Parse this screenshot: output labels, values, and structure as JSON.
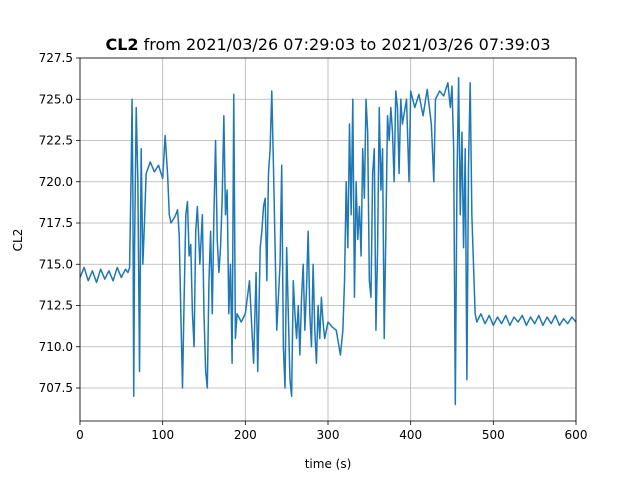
{
  "chart_data": {
    "type": "line",
    "title_bold": "CL2",
    "title_rest": " from 2021/03/26 07:29:03 to 2021/03/26 07:39:03",
    "xlabel": "time (s)",
    "ylabel": "CL2",
    "xlim": [
      0,
      600
    ],
    "ylim": [
      705.5,
      727.5
    ],
    "xticks": [
      0,
      100,
      200,
      300,
      400,
      500,
      600
    ],
    "yticks": [
      707.5,
      710.0,
      712.5,
      715.0,
      717.5,
      720.0,
      722.5,
      725.0,
      727.5
    ],
    "grid": true,
    "line_color": "#1f77b4",
    "series": [
      {
        "points": [
          [
            0,
            714.2
          ],
          [
            5,
            714.8
          ],
          [
            10,
            714.0
          ],
          [
            15,
            714.6
          ],
          [
            20,
            713.9
          ],
          [
            25,
            714.7
          ],
          [
            30,
            714.1
          ],
          [
            35,
            714.6
          ],
          [
            40,
            714.0
          ],
          [
            45,
            714.8
          ],
          [
            50,
            714.2
          ],
          [
            55,
            714.7
          ],
          [
            58,
            714.5
          ],
          [
            60,
            714.8
          ],
          [
            62,
            721.0
          ],
          [
            63,
            725.0
          ],
          [
            64,
            719.0
          ],
          [
            65,
            707.0
          ],
          [
            66,
            716.0
          ],
          [
            68,
            724.5
          ],
          [
            70,
            720.0
          ],
          [
            72,
            708.5
          ],
          [
            74,
            722.0
          ],
          [
            76,
            715.0
          ],
          [
            78,
            717.5
          ],
          [
            80,
            720.5
          ],
          [
            85,
            721.2
          ],
          [
            90,
            720.6
          ],
          [
            95,
            721.0
          ],
          [
            100,
            720.2
          ],
          [
            103,
            722.8
          ],
          [
            106,
            720.4
          ],
          [
            108,
            718.0
          ],
          [
            110,
            717.5
          ],
          [
            115,
            717.9
          ],
          [
            118,
            718.3
          ],
          [
            120,
            716.8
          ],
          [
            122,
            712.0
          ],
          [
            124,
            707.5
          ],
          [
            126,
            713.0
          ],
          [
            128,
            718.0
          ],
          [
            130,
            718.8
          ],
          [
            132,
            715.5
          ],
          [
            134,
            716.2
          ],
          [
            136,
            712.0
          ],
          [
            138,
            710.0
          ],
          [
            140,
            717.0
          ],
          [
            142,
            718.5
          ],
          [
            145,
            715.0
          ],
          [
            148,
            718.0
          ],
          [
            150,
            712.0
          ],
          [
            152,
            708.5
          ],
          [
            154,
            707.5
          ],
          [
            156,
            714.0
          ],
          [
            158,
            717.0
          ],
          [
            160,
            712.0
          ],
          [
            162,
            718.0
          ],
          [
            164,
            722.5
          ],
          [
            166,
            716.5
          ],
          [
            168,
            714.5
          ],
          [
            170,
            716.0
          ],
          [
            172,
            719.0
          ],
          [
            174,
            724.0
          ],
          [
            176,
            718.0
          ],
          [
            178,
            719.5
          ],
          [
            180,
            712.0
          ],
          [
            182,
            715.0
          ],
          [
            184,
            709.0
          ],
          [
            186,
            725.3
          ],
          [
            188,
            710.5
          ],
          [
            190,
            712.0
          ],
          [
            195,
            711.5
          ],
          [
            200,
            712.0
          ],
          [
            205,
            714.0
          ],
          [
            210,
            709.0
          ],
          [
            213,
            714.5
          ],
          [
            215,
            708.5
          ],
          [
            218,
            716.0
          ],
          [
            220,
            717.0
          ],
          [
            222,
            718.5
          ],
          [
            224,
            719.0
          ],
          [
            226,
            714.0
          ],
          [
            228,
            720.5
          ],
          [
            230,
            722.0
          ],
          [
            232,
            725.5
          ],
          [
            234,
            721.0
          ],
          [
            236,
            716.0
          ],
          [
            238,
            711.0
          ],
          [
            240,
            713.0
          ],
          [
            242,
            715.0
          ],
          [
            244,
            721.0
          ],
          [
            246,
            710.0
          ],
          [
            248,
            707.5
          ],
          [
            250,
            716.0
          ],
          [
            252,
            712.0
          ],
          [
            254,
            708.0
          ],
          [
            256,
            707.0
          ],
          [
            258,
            714.0
          ],
          [
            260,
            712.0
          ],
          [
            262,
            710.5
          ],
          [
            264,
            712.5
          ],
          [
            266,
            709.5
          ],
          [
            268,
            713.0
          ],
          [
            270,
            715.0
          ],
          [
            272,
            711.0
          ],
          [
            274,
            713.5
          ],
          [
            276,
            717.0
          ],
          [
            278,
            712.0
          ],
          [
            280,
            710.0
          ],
          [
            282,
            715.0
          ],
          [
            284,
            711.0
          ],
          [
            286,
            709.0
          ],
          [
            288,
            712.5
          ],
          [
            290,
            710.5
          ],
          [
            292,
            713.0
          ],
          [
            294,
            711.5
          ],
          [
            296,
            710.5
          ],
          [
            298,
            711.0
          ],
          [
            300,
            711.5
          ],
          [
            305,
            711.2
          ],
          [
            310,
            711.0
          ],
          [
            315,
            709.5
          ],
          [
            318,
            711.0
          ],
          [
            320,
            714.0
          ],
          [
            322,
            720.0
          ],
          [
            324,
            716.0
          ],
          [
            326,
            723.5
          ],
          [
            328,
            718.0
          ],
          [
            330,
            725.0
          ],
          [
            332,
            713.0
          ],
          [
            334,
            720.0
          ],
          [
            336,
            716.5
          ],
          [
            338,
            718.5
          ],
          [
            340,
            715.5
          ],
          [
            342,
            722.0
          ],
          [
            344,
            719.0
          ],
          [
            346,
            725.0
          ],
          [
            348,
            723.0
          ],
          [
            350,
            714.0
          ],
          [
            352,
            713.0
          ],
          [
            354,
            720.5
          ],
          [
            356,
            722.0
          ],
          [
            358,
            711.0
          ],
          [
            360,
            716.0
          ],
          [
            362,
            724.5
          ],
          [
            364,
            719.5
          ],
          [
            366,
            722.0
          ],
          [
            368,
            710.5
          ],
          [
            370,
            717.0
          ],
          [
            372,
            724.0
          ],
          [
            374,
            722.5
          ],
          [
            376,
            724.5
          ],
          [
            378,
            723.0
          ],
          [
            380,
            720.0
          ],
          [
            382,
            725.5
          ],
          [
            384,
            724.5
          ],
          [
            386,
            720.5
          ],
          [
            388,
            725.0
          ],
          [
            390,
            723.5
          ],
          [
            395,
            725.0
          ],
          [
            398,
            720.0
          ],
          [
            400,
            725.5
          ],
          [
            405,
            724.5
          ],
          [
            410,
            725.3
          ],
          [
            415,
            724.0
          ],
          [
            420,
            725.6
          ],
          [
            425,
            723.5
          ],
          [
            428,
            720.0
          ],
          [
            430,
            725.0
          ],
          [
            435,
            725.5
          ],
          [
            440,
            725.2
          ],
          [
            445,
            726.0
          ],
          [
            448,
            724.5
          ],
          [
            450,
            725.8
          ],
          [
            452,
            722.0
          ],
          [
            454,
            706.5
          ],
          [
            456,
            720.0
          ],
          [
            458,
            726.3
          ],
          [
            460,
            718.0
          ],
          [
            462,
            723.0
          ],
          [
            464,
            716.0
          ],
          [
            466,
            722.0
          ],
          [
            468,
            708.0
          ],
          [
            470,
            721.0
          ],
          [
            472,
            726.0
          ],
          [
            474,
            718.0
          ],
          [
            476,
            715.0
          ],
          [
            478,
            712.0
          ],
          [
            480,
            711.5
          ],
          [
            485,
            712.0
          ],
          [
            490,
            711.4
          ],
          [
            495,
            711.9
          ],
          [
            500,
            711.3
          ],
          [
            505,
            711.8
          ],
          [
            510,
            711.4
          ],
          [
            515,
            711.9
          ],
          [
            520,
            711.3
          ],
          [
            525,
            711.8
          ],
          [
            530,
            711.5
          ],
          [
            535,
            711.9
          ],
          [
            540,
            711.3
          ],
          [
            545,
            711.8
          ],
          [
            550,
            711.4
          ],
          [
            555,
            711.9
          ],
          [
            560,
            711.3
          ],
          [
            565,
            711.8
          ],
          [
            570,
            711.4
          ],
          [
            575,
            711.9
          ],
          [
            580,
            711.3
          ],
          [
            585,
            711.7
          ],
          [
            590,
            711.4
          ],
          [
            595,
            711.8
          ],
          [
            600,
            711.5
          ]
        ]
      }
    ]
  }
}
